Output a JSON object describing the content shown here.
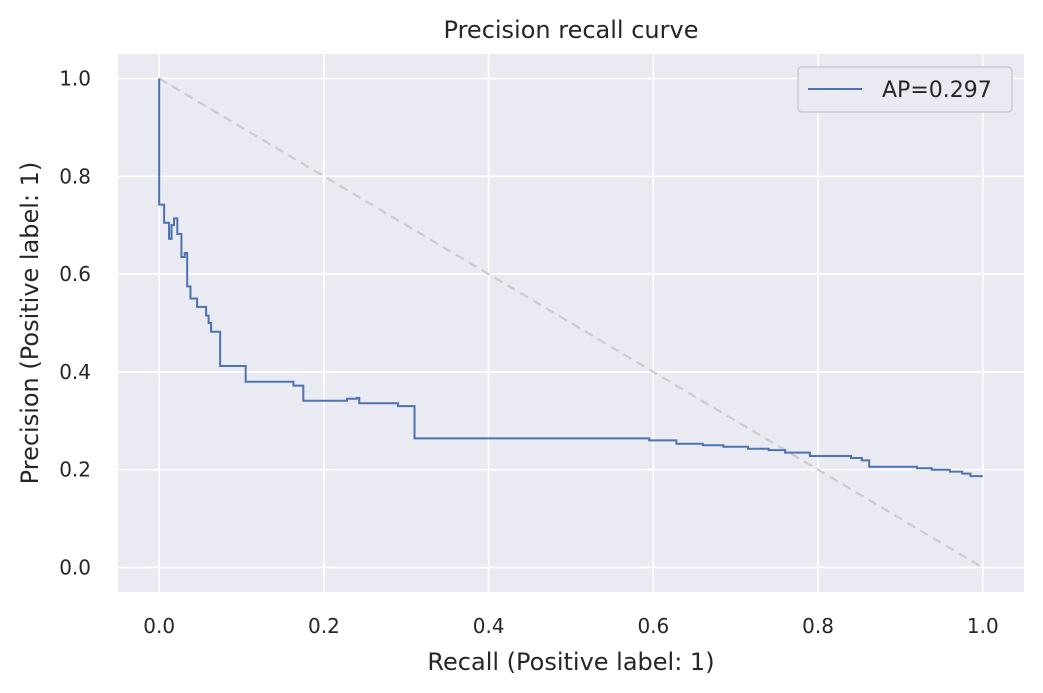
{
  "chart_data": {
    "type": "line",
    "title": "Precision recall curve",
    "xlabel": "Recall (Positive label: 1)",
    "ylabel": "Precision (Positive label: 1)",
    "xlim": [
      -0.05,
      1.05
    ],
    "ylim": [
      -0.05,
      1.05
    ],
    "x_ticks": [
      0.0,
      0.2,
      0.4,
      0.6,
      0.8,
      1.0
    ],
    "y_ticks": [
      0.0,
      0.2,
      0.4,
      0.6,
      0.8,
      1.0
    ],
    "x_tick_labels": [
      "0.0",
      "0.2",
      "0.4",
      "0.6",
      "0.8",
      "1.0"
    ],
    "y_tick_labels": [
      "0.0",
      "0.2",
      "0.4",
      "0.6",
      "0.8",
      "1.0"
    ],
    "grid": true,
    "legend_position": "top-right",
    "series": [
      {
        "name": "AP=0.297",
        "color": "#4c72b0",
        "drawstyle": "steps",
        "x": [
          0.0,
          0.0,
          0.006,
          0.006,
          0.012,
          0.012,
          0.015,
          0.015,
          0.018,
          0.018,
          0.022,
          0.022,
          0.027,
          0.027,
          0.031,
          0.031,
          0.034,
          0.034,
          0.038,
          0.038,
          0.046,
          0.046,
          0.057,
          0.057,
          0.06,
          0.06,
          0.063,
          0.063,
          0.066,
          0.066,
          0.074,
          0.074,
          0.105,
          0.105,
          0.163,
          0.163,
          0.175,
          0.175,
          0.228,
          0.228,
          0.24,
          0.24,
          0.243,
          0.243,
          0.29,
          0.29,
          0.31,
          0.31,
          0.595,
          0.595,
          0.628,
          0.628,
          0.66,
          0.66,
          0.685,
          0.685,
          0.715,
          0.715,
          0.74,
          0.74,
          0.76,
          0.76,
          0.79,
          0.79,
          0.84,
          0.84,
          0.853,
          0.853,
          0.862,
          0.862,
          0.92,
          0.92,
          0.938,
          0.938,
          0.96,
          0.96,
          0.975,
          0.975,
          0.985,
          0.985,
          1.0
        ],
        "y": [
          1.0,
          0.742,
          0.742,
          0.705,
          0.705,
          0.672,
          0.672,
          0.7,
          0.7,
          0.714,
          0.714,
          0.682,
          0.682,
          0.635,
          0.635,
          0.643,
          0.643,
          0.575,
          0.575,
          0.55,
          0.55,
          0.533,
          0.533,
          0.515,
          0.515,
          0.5,
          0.5,
          0.482,
          0.482,
          0.482,
          0.482,
          0.412,
          0.412,
          0.38,
          0.38,
          0.372,
          0.372,
          0.341,
          0.341,
          0.345,
          0.345,
          0.347,
          0.347,
          0.336,
          0.336,
          0.33,
          0.33,
          0.264,
          0.264,
          0.26,
          0.26,
          0.253,
          0.253,
          0.25,
          0.25,
          0.247,
          0.247,
          0.243,
          0.243,
          0.24,
          0.24,
          0.235,
          0.235,
          0.228,
          0.228,
          0.224,
          0.224,
          0.219,
          0.219,
          0.206,
          0.206,
          0.203,
          0.203,
          0.2,
          0.2,
          0.196,
          0.196,
          0.192,
          0.192,
          0.187,
          0.187
        ]
      },
      {
        "name": "",
        "color": "#cccccc",
        "dashed": true,
        "x": [
          0.0,
          1.0
        ],
        "y": [
          1.0,
          0.0
        ]
      }
    ]
  }
}
